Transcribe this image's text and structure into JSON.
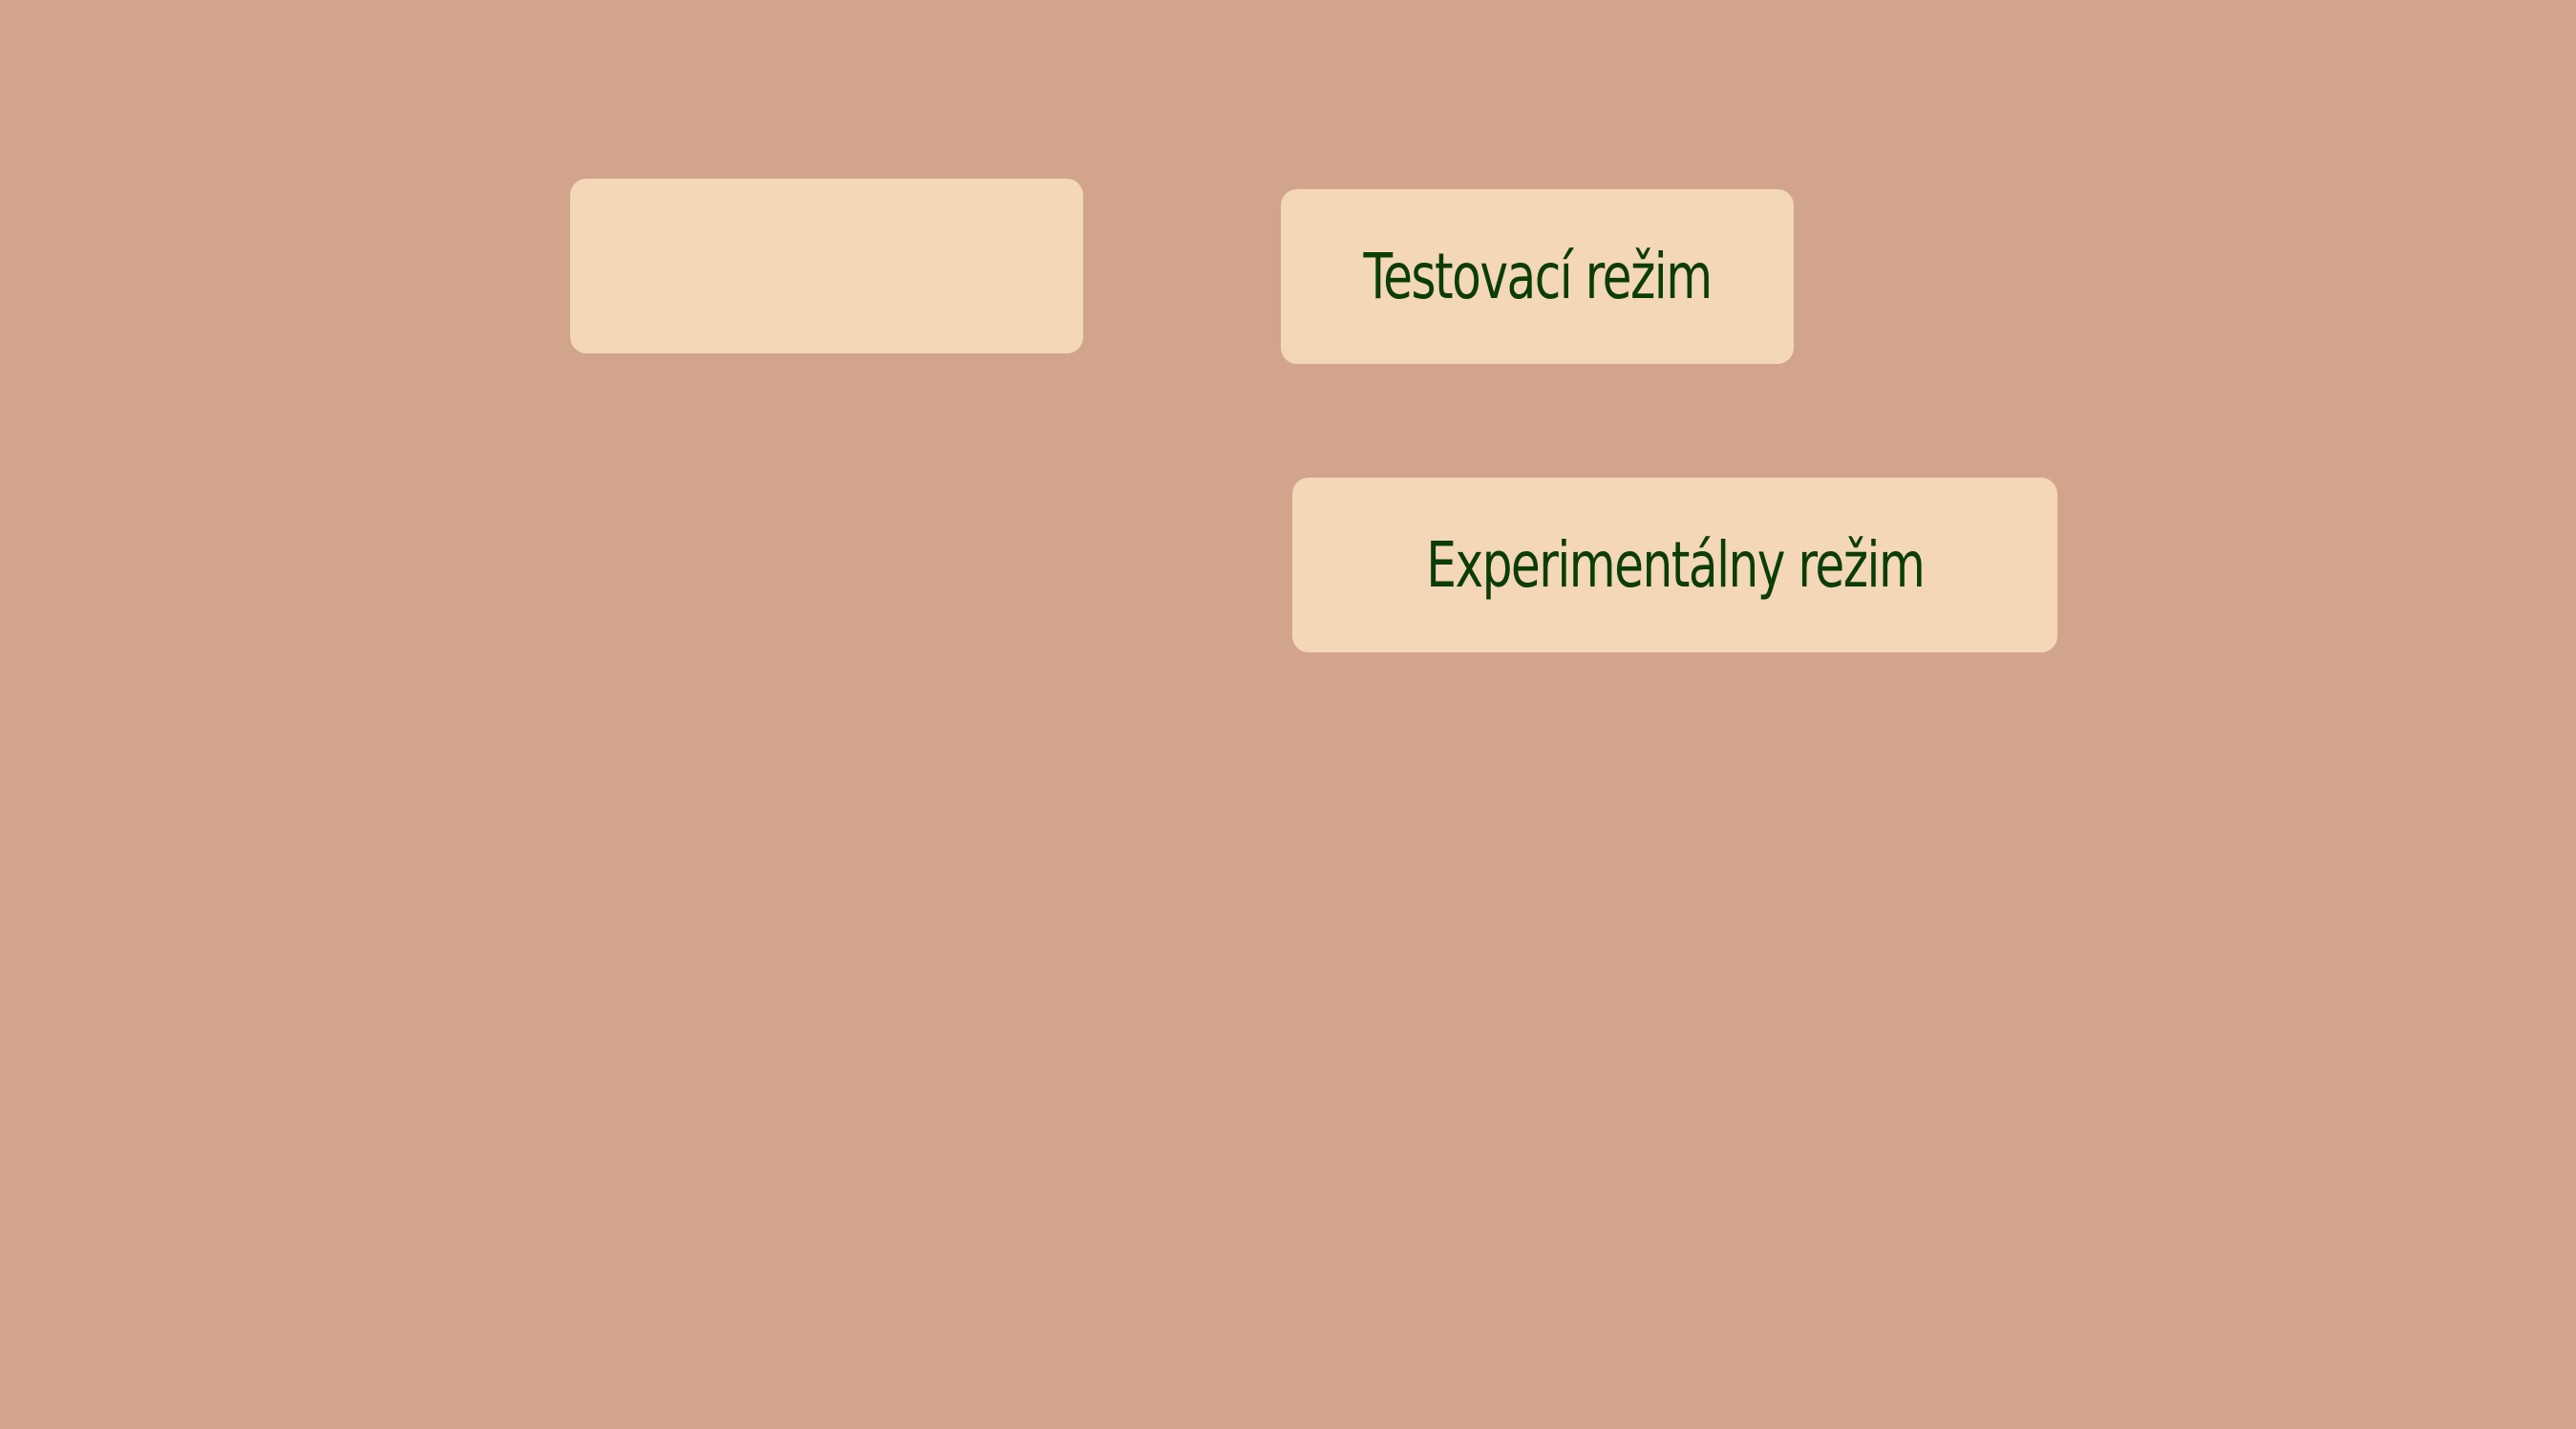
{
  "colors": {
    "background": "#d2a48c",
    "button_fill": "#f3d7b7",
    "button_text": "#0b3d06"
  },
  "buttons": [
    {
      "label": ""
    },
    {
      "label": "Testovací režim"
    },
    {
      "label": "Experimentálny režim"
    }
  ]
}
